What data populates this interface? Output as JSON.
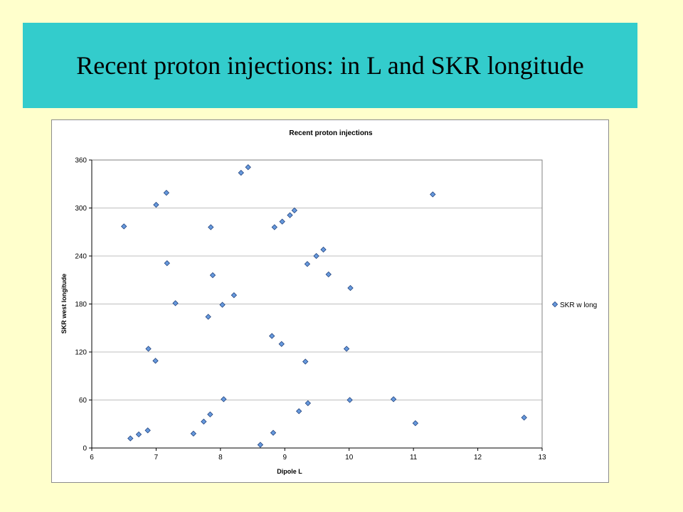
{
  "slide": {
    "title": "Recent proton injections: in L and SKR longitude"
  },
  "colors": {
    "banner": "#33cccc",
    "background": "#ffffcc",
    "marker_fill": "#6699dd",
    "marker_stroke": "#1f3f7a",
    "gridline": "#bfbfbf"
  },
  "chart_data": {
    "type": "scatter",
    "title": "Recent proton injections",
    "xlabel": "Dipole L",
    "ylabel": "SKR west longitude",
    "xlim": [
      6,
      13
    ],
    "ylim": [
      0,
      360
    ],
    "xticks": [
      "6",
      "7",
      "8",
      "9",
      "10",
      "11",
      "12",
      "13"
    ],
    "yticks": [
      "0",
      "60",
      "120",
      "180",
      "240",
      "300",
      "360"
    ],
    "grid": "horizontal",
    "legend_position": "right",
    "series": [
      {
        "name": "SKR w long",
        "marker": "diamond",
        "x": [
          6.5,
          6.6,
          6.73,
          6.87,
          6.88,
          6.99,
          7.0,
          7.16,
          7.17,
          7.3,
          7.58,
          7.74,
          7.81,
          7.84,
          7.85,
          7.88,
          8.03,
          8.05,
          8.21,
          8.32,
          8.43,
          8.62,
          8.8,
          8.82,
          8.84,
          8.95,
          8.96,
          9.08,
          9.15,
          9.22,
          9.32,
          9.35,
          9.36,
          9.49,
          9.6,
          9.68,
          9.96,
          10.01,
          10.02,
          10.69,
          11.03,
          11.3,
          12.72
        ],
        "y": [
          277,
          12,
          17,
          22,
          124,
          109,
          304,
          319,
          231,
          181,
          18,
          33,
          164,
          42,
          276,
          216,
          179,
          61,
          191,
          344,
          351,
          4,
          140,
          19,
          276,
          130,
          283,
          291,
          297,
          46,
          108,
          230,
          56,
          240,
          248,
          217,
          124,
          60,
          200,
          61,
          31,
          317,
          38
        ]
      }
    ]
  }
}
